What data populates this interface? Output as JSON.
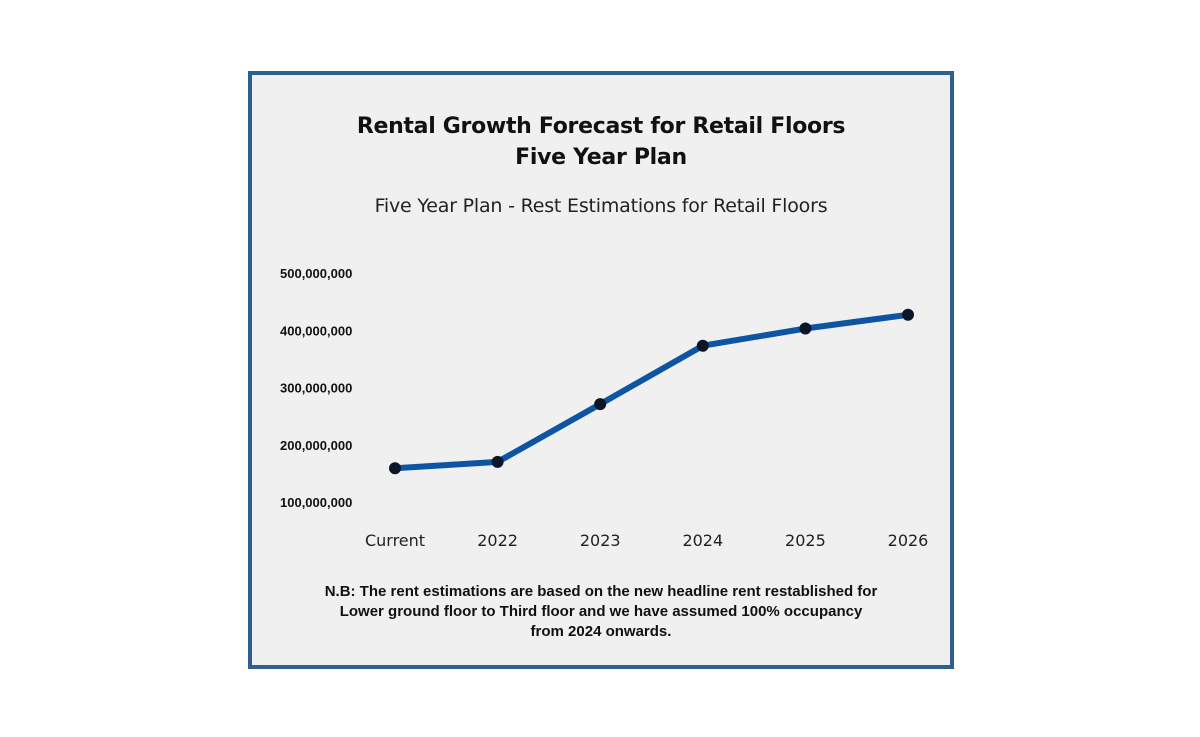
{
  "title": {
    "line1": "Rental Growth Forecast for Retail Floors",
    "line2": "Five Year Plan"
  },
  "note": {
    "line1": "N.B: The rent estimations are based on the new headline rent restablished for",
    "line2": "Lower ground floor to Third floor and we have assumed 100% occupancy",
    "line3": "from 2024 onwards."
  },
  "colors": {
    "line": "#0d55a3",
    "marker": "#0b1626",
    "border": "#2f5f8e",
    "background": "#f0f0f0"
  },
  "chart_data": {
    "type": "line",
    "title": "Five Year Plan - Rest Estimations for Retail Floors",
    "xlabel": "",
    "ylabel": "",
    "categories": [
      "Current",
      "2022",
      "2023",
      "2024",
      "2025",
      "2026"
    ],
    "series": [
      {
        "values": [
          159000000,
          170000000,
          271000000,
          373000000,
          403000000,
          427000000
        ]
      }
    ],
    "yticks": [
      100000000,
      200000000,
      300000000,
      400000000,
      500000000
    ],
    "ytick_labels": [
      "100,000,000",
      "200,000,000",
      "300,000,000",
      "400,000,000",
      "500,000,000"
    ],
    "ylim": [
      100000000,
      500000000
    ],
    "grid": false,
    "legend": "none"
  }
}
